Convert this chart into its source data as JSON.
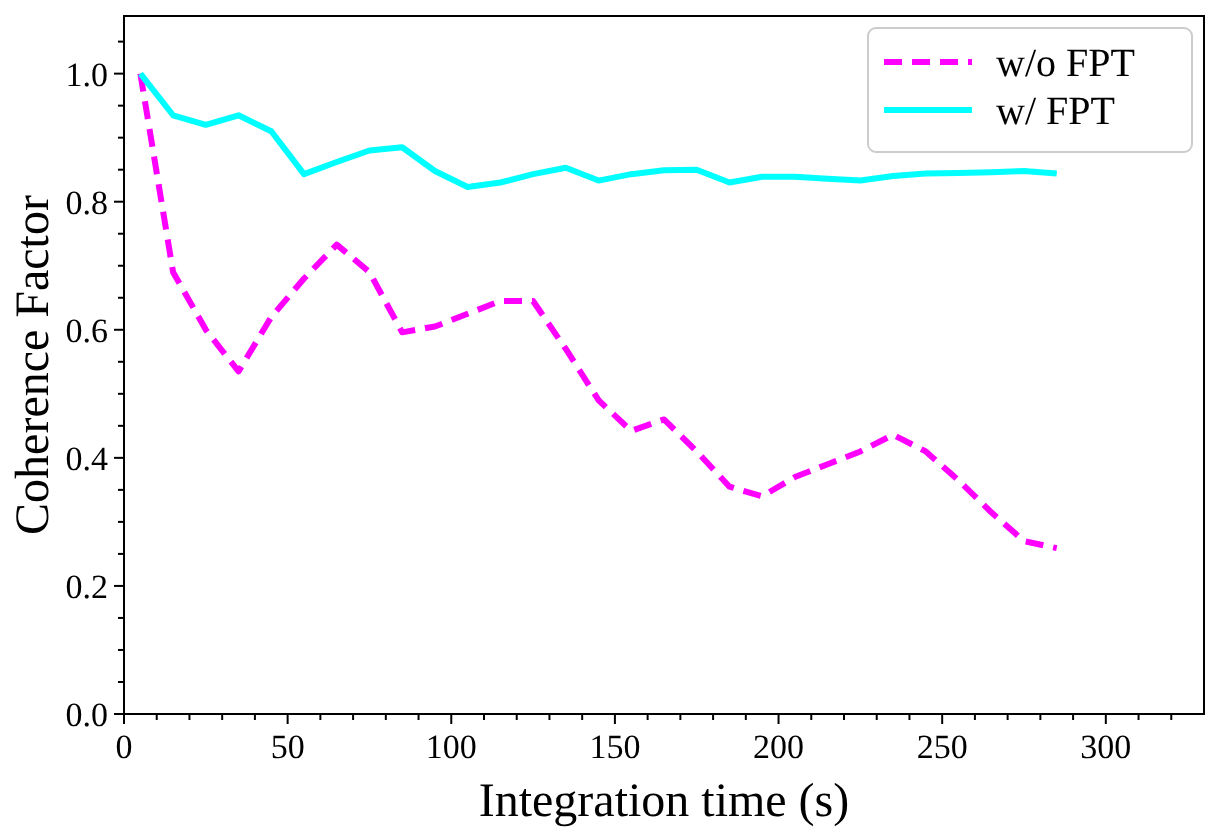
{
  "chart_data": {
    "type": "line",
    "xlabel": "Integration time (s)",
    "ylabel": "Coherence Factor",
    "x": [
      5,
      15,
      25,
      35,
      45,
      55,
      65,
      75,
      85,
      95,
      105,
      115,
      125,
      135,
      145,
      155,
      165,
      175,
      185,
      195,
      205,
      215,
      225,
      235,
      245,
      255,
      265,
      275,
      285
    ],
    "series": [
      {
        "name": "w/o FPT",
        "color": "#ff00ff",
        "line_style": "dashed",
        "values": [
          1.0,
          0.69,
          0.6,
          0.535,
          0.62,
          0.68,
          0.733,
          0.69,
          0.596,
          0.605,
          0.625,
          0.645,
          0.645,
          0.57,
          0.49,
          0.442,
          0.46,
          0.41,
          0.355,
          0.34,
          0.37,
          0.39,
          0.41,
          0.436,
          0.41,
          0.365,
          0.315,
          0.27,
          0.259
        ]
      },
      {
        "name": "w/ FPT",
        "color": "#00ffff",
        "line_style": "solid",
        "values": [
          1.0,
          0.935,
          0.92,
          0.935,
          0.91,
          0.843,
          0.862,
          0.88,
          0.885,
          0.848,
          0.823,
          0.83,
          0.843,
          0.853,
          0.833,
          0.843,
          0.849,
          0.85,
          0.83,
          0.839,
          0.839,
          0.836,
          0.833,
          0.84,
          0.844,
          0.845,
          0.846,
          0.848,
          0.844
        ]
      }
    ],
    "xlim": [
      0,
      330
    ],
    "xticks": [
      0,
      {
        "value": 10,
        "label": null
      },
      {
        "value": 20,
        "label": null
      },
      {
        "value": 30,
        "label": null
      },
      {
        "value": 40,
        "label": null
      },
      50,
      {
        "value": 60,
        "label": null
      },
      {
        "value": 70,
        "label": null
      },
      {
        "value": 80,
        "label": null
      },
      {
        "value": 90,
        "label": null
      },
      100,
      {
        "value": 110,
        "label": null
      },
      {
        "value": 120,
        "label": null
      },
      {
        "value": 130,
        "label": null
      },
      {
        "value": 140,
        "label": null
      },
      150,
      {
        "value": 160,
        "label": null
      },
      {
        "value": 170,
        "label": null
      },
      {
        "value": 180,
        "label": null
      },
      {
        "value": 190,
        "label": null
      },
      200,
      {
        "value": 210,
        "label": null
      },
      {
        "value": 220,
        "label": null
      },
      {
        "value": 230,
        "label": null
      },
      {
        "value": 240,
        "label": null
      },
      250,
      {
        "value": 260,
        "label": null
      },
      {
        "value": 270,
        "label": null
      },
      {
        "value": 280,
        "label": null
      },
      {
        "value": 290,
        "label": null
      },
      300,
      {
        "value": 310,
        "label": null
      },
      {
        "value": 320,
        "label": null
      }
    ],
    "ylim": [
      0,
      1.09
    ],
    "yticks": [
      {
        "value": 0,
        "label": "0.0"
      },
      {
        "value": 0.05,
        "label": null
      },
      {
        "value": 0.1,
        "label": null
      },
      {
        "value": 0.15,
        "label": null
      },
      {
        "value": 0.2,
        "label": "0.2"
      },
      {
        "value": 0.25,
        "label": null
      },
      {
        "value": 0.3,
        "label": null
      },
      {
        "value": 0.35,
        "label": null
      },
      {
        "value": 0.4,
        "label": "0.4"
      },
      {
        "value": 0.45,
        "label": null
      },
      {
        "value": 0.5,
        "label": null
      },
      {
        "value": 0.55,
        "label": null
      },
      {
        "value": 0.6,
        "label": "0.6"
      },
      {
        "value": 0.65,
        "label": null
      },
      {
        "value": 0.7,
        "label": null
      },
      {
        "value": 0.75,
        "label": null
      },
      {
        "value": 0.8,
        "label": "0.8"
      },
      {
        "value": 0.85,
        "label": null
      },
      {
        "value": 0.9,
        "label": null
      },
      {
        "value": 0.95,
        "label": null
      },
      {
        "value": 1.0,
        "label": "1.0"
      },
      {
        "value": 1.05,
        "label": null
      }
    ],
    "legend": "top right",
    "grid": false,
    "marker": "none"
  }
}
